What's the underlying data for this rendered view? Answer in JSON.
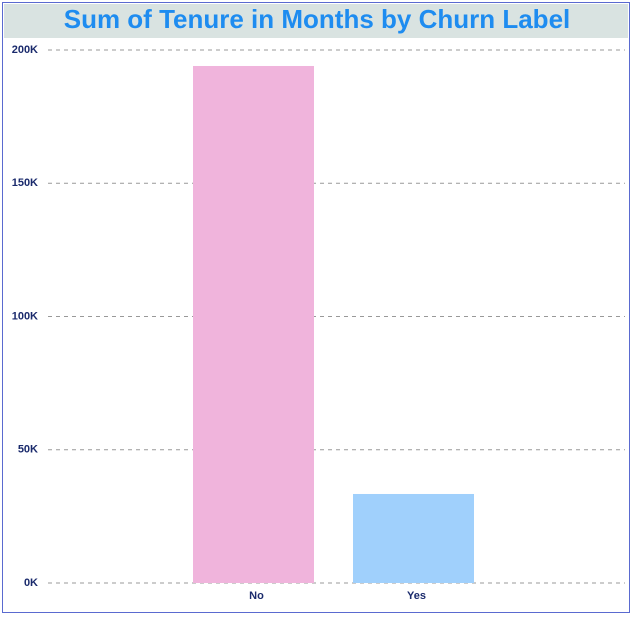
{
  "chart_data": {
    "type": "bar",
    "title": "Sum of Tenure in Months by Churn Label",
    "categories": [
      "No",
      "Yes"
    ],
    "values": [
      194000,
      33400
    ],
    "colors": [
      "#f0b4dc",
      "#a0d0fc"
    ],
    "ylim": [
      0,
      200000
    ],
    "yticks": [
      {
        "value": 0,
        "label": "0K"
      },
      {
        "value": 50000,
        "label": "50K"
      },
      {
        "value": 100000,
        "label": "100K"
      },
      {
        "value": 150000,
        "label": "150K"
      },
      {
        "value": 200000,
        "label": "200K"
      }
    ],
    "grid": true
  }
}
